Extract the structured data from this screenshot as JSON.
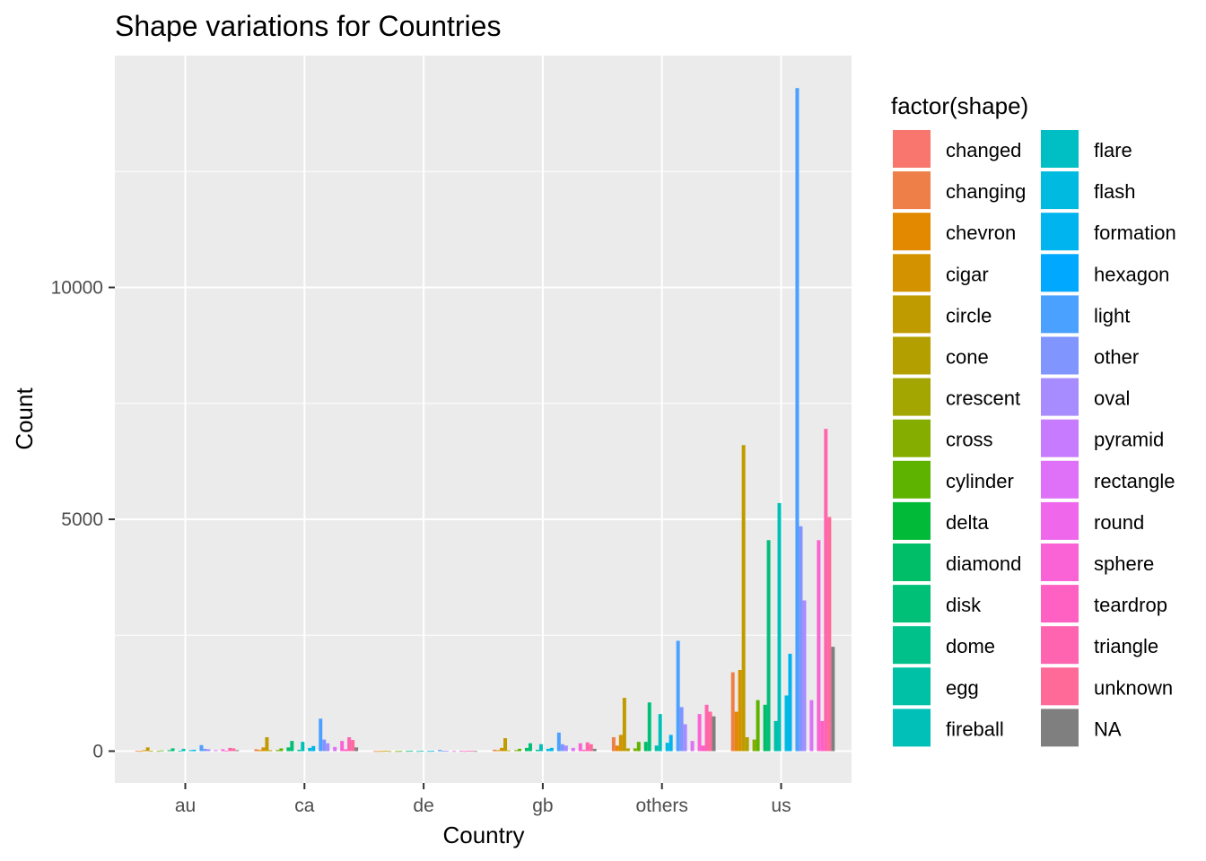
{
  "chart_data": {
    "type": "bar",
    "title": "Shape variations for Countries",
    "xlabel": "Country",
    "ylabel": "Count",
    "categories": [
      "au",
      "ca",
      "de",
      "gb",
      "others",
      "us"
    ],
    "yticks": [
      0,
      5000,
      10000
    ],
    "ylim": [
      -700,
      15200
    ],
    "grid": true,
    "legend_title": "factor(shape)",
    "legend_position": "right",
    "series": [
      {
        "name": "changed",
        "color": "#F8766D",
        "values": [
          0,
          0,
          0,
          0,
          0,
          0
        ]
      },
      {
        "name": "changing",
        "color": "#EF7F49",
        "values": [
          5,
          40,
          2,
          30,
          300,
          1700
        ]
      },
      {
        "name": "chevron",
        "color": "#E38900",
        "values": [
          3,
          25,
          1,
          20,
          120,
          850
        ]
      },
      {
        "name": "cigar",
        "color": "#D39200",
        "values": [
          20,
          80,
          3,
          70,
          350,
          1750
        ]
      },
      {
        "name": "circle",
        "color": "#C09B00",
        "values": [
          80,
          300,
          10,
          280,
          1150,
          6600
        ]
      },
      {
        "name": "cone",
        "color": "#B3A000",
        "values": [
          4,
          20,
          1,
          15,
          60,
          300
        ]
      },
      {
        "name": "crescent",
        "color": "#A3A500",
        "values": [
          0,
          0,
          0,
          0,
          0,
          0
        ]
      },
      {
        "name": "cross",
        "color": "#85AD00",
        "values": [
          3,
          25,
          1,
          20,
          60,
          250
        ]
      },
      {
        "name": "cylinder",
        "color": "#5EB300",
        "values": [
          15,
          60,
          2,
          50,
          200,
          1100
        ]
      },
      {
        "name": "delta",
        "color": "#00BA38",
        "values": [
          0,
          0,
          0,
          0,
          0,
          0
        ]
      },
      {
        "name": "diamond",
        "color": "#00BE67",
        "values": [
          20,
          80,
          3,
          70,
          200,
          1000
        ]
      },
      {
        "name": "disk",
        "color": "#00C078",
        "values": [
          60,
          220,
          10,
          170,
          1050,
          4550
        ]
      },
      {
        "name": "dome",
        "color": "#00C18A",
        "values": [
          0,
          0,
          0,
          0,
          0,
          0
        ]
      },
      {
        "name": "egg",
        "color": "#00C0A5",
        "values": [
          10,
          30,
          2,
          30,
          120,
          650
        ]
      },
      {
        "name": "fireball",
        "color": "#00C0B8",
        "values": [
          50,
          200,
          7,
          150,
          800,
          5350
        ]
      },
      {
        "name": "flare",
        "color": "#00BFC4",
        "values": [
          0,
          0,
          0,
          0,
          0,
          0
        ]
      },
      {
        "name": "flash",
        "color": "#00BAE0",
        "values": [
          20,
          70,
          3,
          50,
          180,
          1200
        ]
      },
      {
        "name": "formation",
        "color": "#00B4EF",
        "values": [
          30,
          110,
          5,
          70,
          350,
          2100
        ]
      },
      {
        "name": "hexagon",
        "color": "#00A9FF",
        "values": [
          0,
          0,
          0,
          0,
          0,
          0
        ]
      },
      {
        "name": "light",
        "color": "#4BA1FF",
        "values": [
          130,
          700,
          25,
          400,
          2380,
          14300
        ]
      },
      {
        "name": "other",
        "color": "#8195FF",
        "values": [
          50,
          250,
          5,
          150,
          950,
          4850
        ]
      },
      {
        "name": "oval",
        "color": "#A68CFF",
        "values": [
          40,
          170,
          5,
          120,
          580,
          3250
        ]
      },
      {
        "name": "pyramid",
        "color": "#C77CFF",
        "values": [
          0,
          0,
          0,
          0,
          0,
          0
        ]
      },
      {
        "name": "rectangle",
        "color": "#DE71F7",
        "values": [
          20,
          90,
          3,
          70,
          220,
          1100
        ]
      },
      {
        "name": "round",
        "color": "#EF67EB",
        "values": [
          0,
          0,
          0,
          0,
          0,
          0
        ]
      },
      {
        "name": "sphere",
        "color": "#FA63D6",
        "values": [
          40,
          220,
          5,
          170,
          800,
          4550
        ]
      },
      {
        "name": "teardrop",
        "color": "#FF61C3",
        "values": [
          10,
          40,
          2,
          30,
          120,
          650
        ]
      },
      {
        "name": "triangle",
        "color": "#FF64B0",
        "values": [
          70,
          300,
          10,
          190,
          1000,
          6950
        ]
      },
      {
        "name": "unknown",
        "color": "#FF6A98",
        "values": [
          60,
          240,
          5,
          150,
          850,
          5050
        ]
      },
      {
        "name": "NA",
        "color": "#7F7F7F",
        "values": [
          20,
          80,
          2,
          50,
          750,
          2250
        ]
      }
    ]
  }
}
